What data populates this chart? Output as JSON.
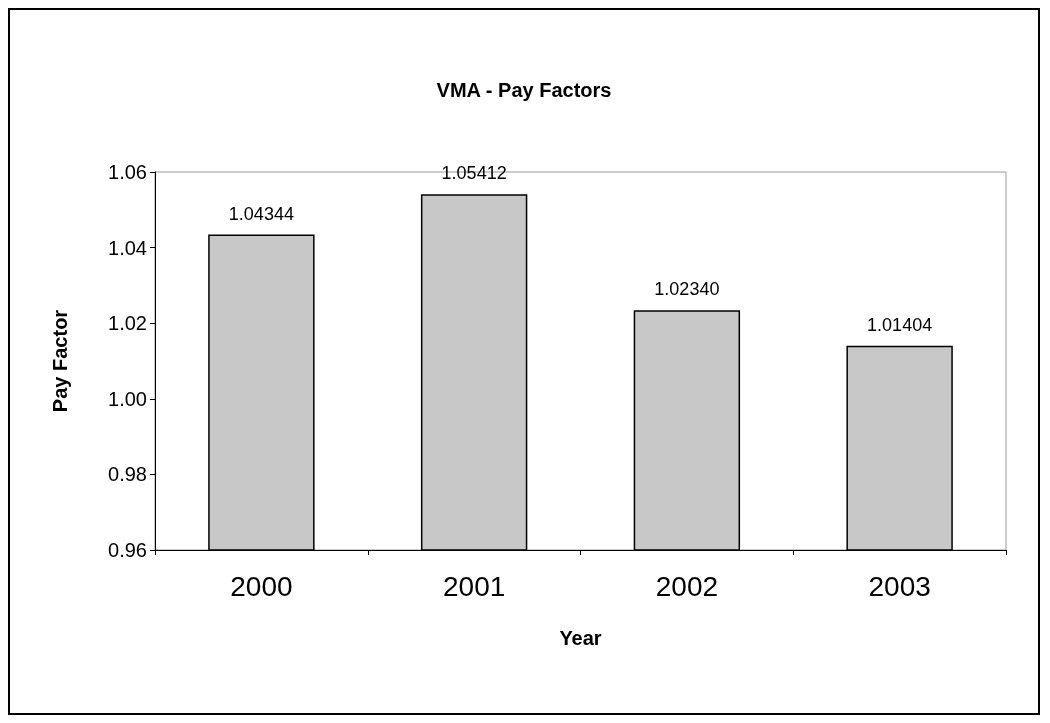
{
  "chart_data": {
    "type": "bar",
    "title": "VMA - Pay Factors",
    "xlabel": "Year",
    "ylabel": "Pay Factor",
    "categories": [
      "2000",
      "2001",
      "2002",
      "2003"
    ],
    "values": [
      1.04344,
      1.05412,
      1.0234,
      1.01404
    ],
    "value_labels": [
      "1.04344",
      "1.05412",
      "1.02340",
      "1.01404"
    ],
    "color": "#c8c8c8",
    "ylim": [
      0.96,
      1.06
    ],
    "yticks": [
      {
        "value": 0.96,
        "label": "0.96"
      },
      {
        "value": 0.98,
        "label": "0.98"
      },
      {
        "value": 1.0,
        "label": "1.00"
      },
      {
        "value": 1.02,
        "label": "1.02"
      },
      {
        "value": 1.04,
        "label": "1.04"
      },
      {
        "value": 1.06,
        "label": "1.06"
      }
    ],
    "grid": false
  }
}
